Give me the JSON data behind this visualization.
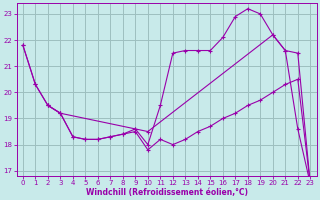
{
  "background_color": "#c8eaea",
  "grid_color": "#9dbfbf",
  "line_color": "#9900aa",
  "marker": "+",
  "xlabel": "Windchill (Refroidissement éolien,°C)",
  "xlim": [
    -0.5,
    23.5
  ],
  "ylim": [
    16.8,
    23.4
  ],
  "yticks": [
    17,
    18,
    19,
    20,
    21,
    22,
    23
  ],
  "xticks": [
    0,
    1,
    2,
    3,
    4,
    5,
    6,
    7,
    8,
    9,
    10,
    11,
    12,
    13,
    14,
    15,
    16,
    17,
    18,
    19,
    20,
    21,
    22,
    23
  ],
  "line1_x": [
    0,
    1,
    2,
    3,
    4,
    5,
    6,
    7,
    8,
    9,
    10,
    11,
    12,
    13,
    14,
    15,
    16,
    17,
    18,
    19,
    20,
    21,
    22,
    23
  ],
  "line1_y": [
    21.8,
    20.3,
    19.5,
    19.2,
    18.3,
    18.2,
    18.2,
    18.3,
    18.4,
    18.5,
    17.8,
    18.2,
    18.0,
    18.2,
    18.5,
    18.7,
    19.0,
    19.2,
    19.5,
    19.7,
    20.0,
    20.3,
    20.5,
    16.5
  ],
  "line2_x": [
    0,
    1,
    2,
    3,
    9,
    10,
    11,
    12,
    13,
    14,
    15,
    16,
    17,
    18,
    19,
    20,
    21,
    22,
    23
  ],
  "line2_y": [
    21.8,
    20.3,
    19.5,
    19.2,
    18.6,
    18.0,
    19.5,
    21.5,
    21.6,
    21.6,
    21.6,
    22.1,
    22.9,
    23.2,
    23.0,
    22.2,
    21.6,
    21.5,
    16.5
  ],
  "line3_x": [
    2,
    3,
    4,
    5,
    6,
    7,
    8,
    9,
    10,
    20,
    21,
    22,
    23
  ],
  "line3_y": [
    19.5,
    19.2,
    18.3,
    18.2,
    18.2,
    18.3,
    18.4,
    18.6,
    18.5,
    22.2,
    21.6,
    18.6,
    16.5
  ]
}
